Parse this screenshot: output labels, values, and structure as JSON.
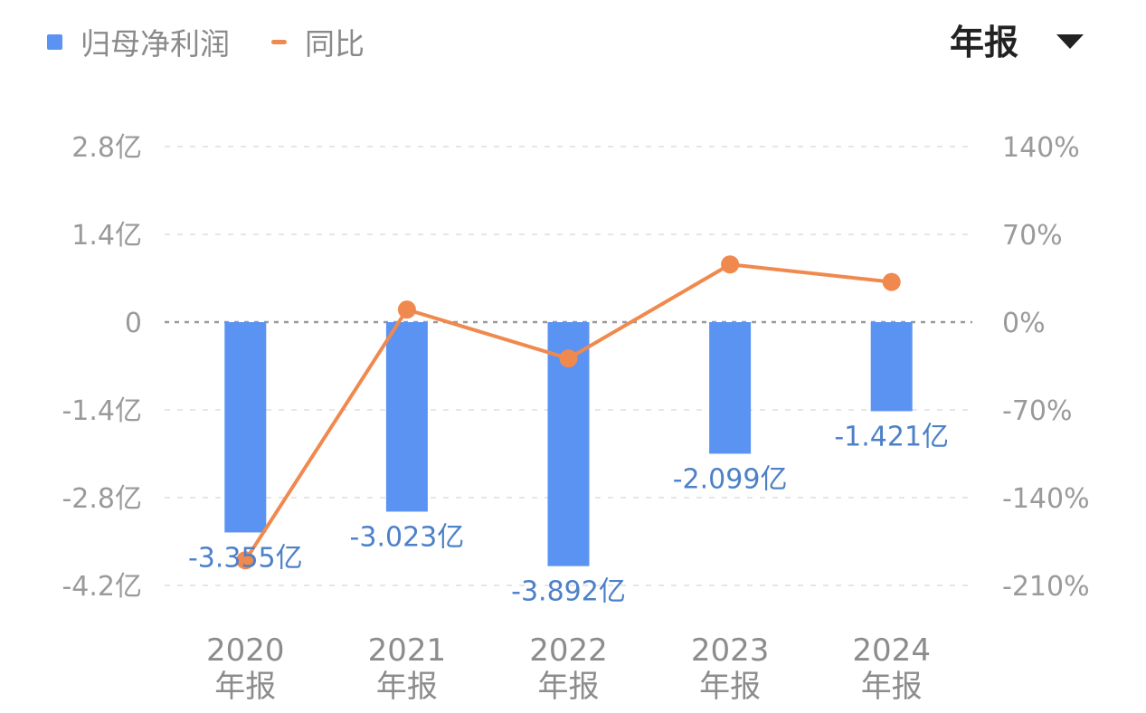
{
  "legend": {
    "bar_label": "归母净利润",
    "line_label": "同比"
  },
  "period_selector": {
    "label": "年报",
    "icon": "caret-down-icon"
  },
  "colors": {
    "bar": "#5b93f3",
    "line": "#f0894e",
    "bar_label": "#4c80c8",
    "grid": "#e6e6e6",
    "zero_line": "#999999"
  },
  "chart_data": {
    "type": "bar",
    "categories": [
      "2020\n年报",
      "2021\n年报",
      "2022\n年报",
      "2023\n年报",
      "2024\n年报"
    ],
    "series": [
      {
        "name": "归母净利润",
        "type": "bar",
        "axis": "left",
        "values": [
          -3.355,
          -3.023,
          -3.892,
          -2.099,
          -1.421
        ],
        "labels": [
          "-3.355亿",
          "-3.023亿",
          "-3.892亿",
          "-2.099亿",
          "-1.421亿"
        ]
      },
      {
        "name": "同比",
        "type": "line",
        "axis": "right",
        "values": [
          -190,
          10,
          -29,
          46,
          32
        ]
      }
    ],
    "left_axis": {
      "ticks": [
        2.8,
        1.4,
        0,
        -1.4,
        -2.8,
        -4.2
      ],
      "tick_labels": [
        "2.8亿",
        "1.4亿",
        "0",
        "-1.4亿",
        "-2.8亿",
        "-4.2亿"
      ],
      "ylim": [
        -4.2,
        2.8
      ]
    },
    "right_axis": {
      "ticks": [
        140,
        70,
        0,
        -70,
        -140,
        -210
      ],
      "tick_labels": [
        "140%",
        "70%",
        "0%",
        "-70%",
        "-140%",
        "-210%"
      ],
      "ylim": [
        -210,
        140
      ]
    },
    "grid": true,
    "legend_position": "top-left"
  }
}
